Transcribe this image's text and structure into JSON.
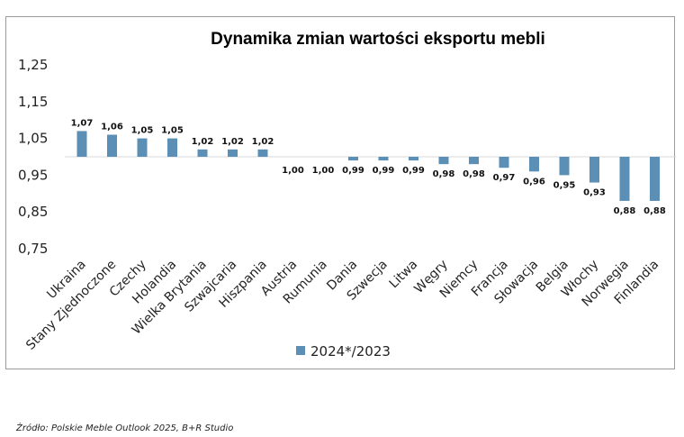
{
  "chart_data": {
    "type": "bar",
    "title": "Dynamika zmian wartości eksportu mebli",
    "categories": [
      "Ukraina",
      "Stany Zjednoczone",
      "Czechy",
      "Holandia",
      "Wielka Brytania",
      "Szwajcaria",
      "Hiszpania",
      "Austria",
      "Rumunia",
      "Dania",
      "Szwecja",
      "Litwa",
      "Węgry",
      "Niemcy",
      "Francja",
      "Słowacja",
      "Belgia",
      "Włochy",
      "Norwegia",
      "Finlandia"
    ],
    "series": [
      {
        "name": "2024*/2023",
        "values": [
          1.07,
          1.06,
          1.05,
          1.05,
          1.02,
          1.02,
          1.02,
          1.0,
          1.0,
          0.99,
          0.99,
          0.99,
          0.98,
          0.98,
          0.97,
          0.96,
          0.95,
          0.93,
          0.88,
          0.88
        ],
        "labels": [
          "1,07",
          "1,06",
          "1,05",
          "1,05",
          "1,02",
          "1,02",
          "1,02",
          "1,00",
          "1,00",
          "0,99",
          "0,99",
          "0,99",
          "0,98",
          "0,98",
          "0,97",
          "0,96",
          "0,95",
          "0,93",
          "0,88",
          "0,88"
        ]
      }
    ],
    "y_ticks": [
      "1,25",
      "1,15",
      "1,05",
      "0,95",
      "0,85",
      "0,75"
    ],
    "y_tick_values": [
      1.25,
      1.15,
      1.05,
      0.95,
      0.85,
      0.75
    ],
    "ylim": [
      0.75,
      1.25
    ],
    "baseline": 1.0,
    "xlabel": "",
    "ylabel": "",
    "grid": false,
    "legend": "bottom",
    "colors": {
      "bar": "#5b8fb5",
      "baseline": "#d9d9d9"
    }
  },
  "source_note": "Źródło: Polskie Meble Outlook 2025, B+R Studio"
}
